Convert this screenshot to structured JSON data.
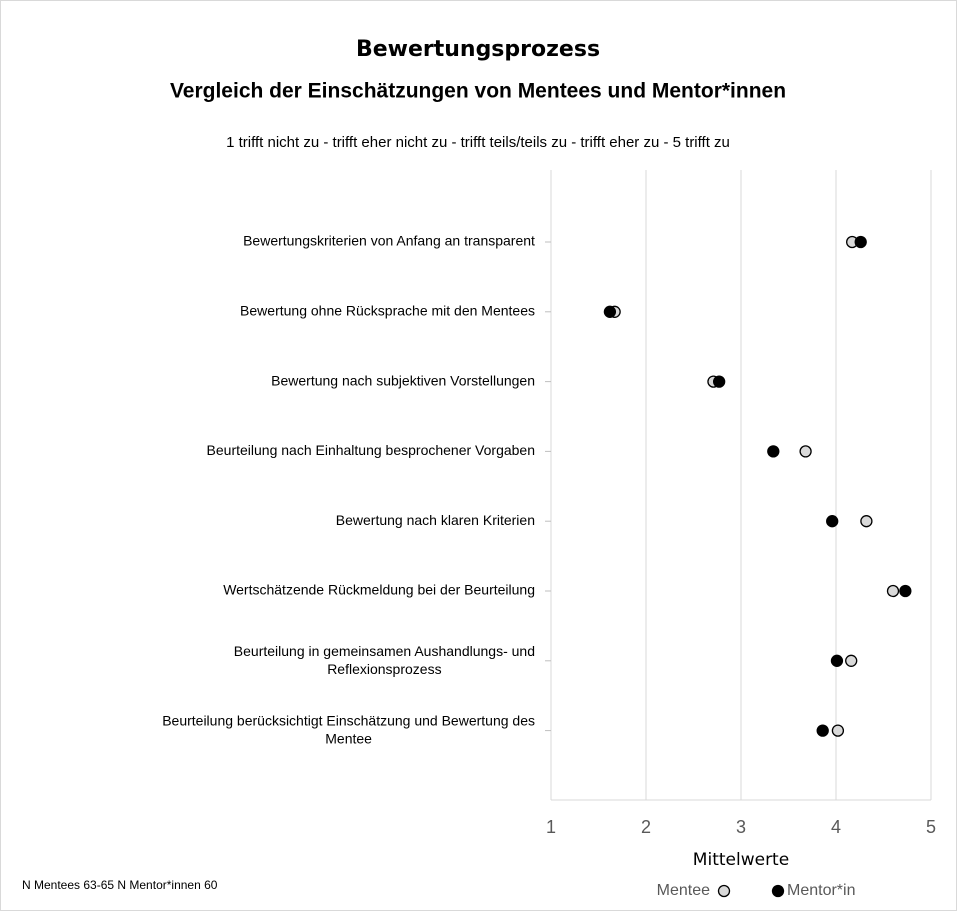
{
  "chart_data": {
    "type": "dot",
    "title": "Bewertungsprozess",
    "subtitle": "Vergleich der Einschätzungen von Mentees und Mentor*innen",
    "scale_note": "1 trifft nicht zu - trifft eher nicht zu - trifft teils/teils zu - trifft eher zu - 5 trifft zu",
    "x_label": "Mittelwerte",
    "footnote": "N Mentees 63-65 N Mentor*innen 60",
    "categories": [
      "Bewertungskriterien von Anfang an transparent",
      "Bewertung ohne Rücksprache mit den Mentees",
      "Bewertung nach subjektiven Vorstellungen",
      "Beurteilung nach Einhaltung besprochener Vorgaben",
      "Bewertung nach klaren Kriterien",
      "Wertschätzende Rückmeldung bei der Beurteilung",
      "Beurteilung in gemeinsamen Aushandlungs- und\nReflexionsprozess",
      "Beurteilung berücksichtigt Einschätzung und Bewertung des\nMentee"
    ],
    "series": [
      {
        "name": "Mentee",
        "color": "#d9d9d9",
        "values": [
          4.17,
          1.67,
          2.71,
          3.68,
          4.32,
          4.6,
          4.16,
          4.02
        ]
      },
      {
        "name": "Mentor*in",
        "color": "#000000",
        "values": [
          4.26,
          1.62,
          2.77,
          3.34,
          3.96,
          4.73,
          4.01,
          3.86
        ]
      }
    ],
    "xlim": [
      1,
      5
    ],
    "xticks": [
      1,
      2,
      3,
      4,
      5
    ],
    "grid": true
  }
}
